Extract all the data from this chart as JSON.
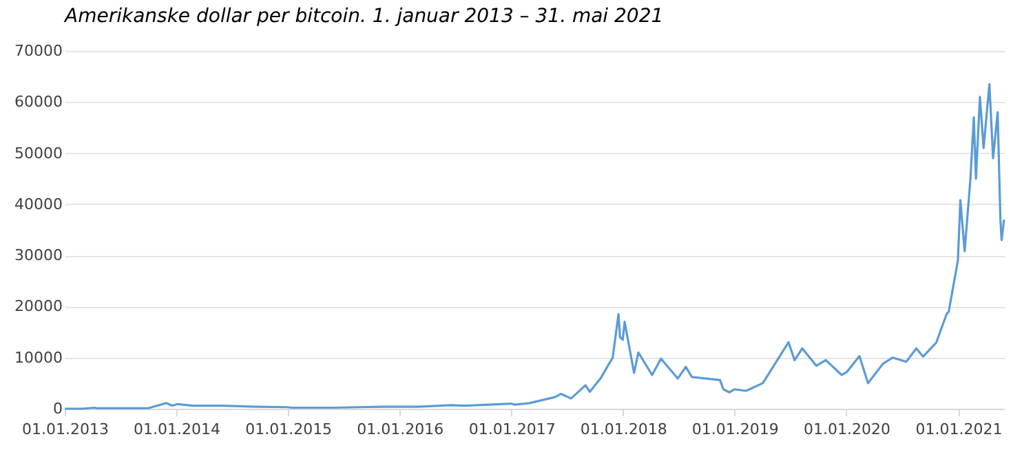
{
  "chart_data": {
    "type": "line",
    "title": "Amerikanske dollar per bitcoin. 1. januar 2013 – 31. mai 2021",
    "x": [
      "2013-01-01",
      "2013-03-01",
      "2013-04-09",
      "2013-04-16",
      "2013-07-05",
      "2013-10-01",
      "2013-11-30",
      "2013-12-18",
      "2014-01-05",
      "2014-02-25",
      "2014-06-03",
      "2014-09-20",
      "2014-12-31",
      "2015-01-14",
      "2015-06-01",
      "2015-11-04",
      "2015-12-20",
      "2016-03-01",
      "2016-06-17",
      "2016-08-02",
      "2016-12-31",
      "2017-01-11",
      "2017-03-01",
      "2017-05-25",
      "2017-06-12",
      "2017-07-15",
      "2017-08-31",
      "2017-09-14",
      "2017-10-20",
      "2017-11-28",
      "2017-12-17",
      "2017-12-22",
      "2017-12-31",
      "2018-01-06",
      "2018-02-06",
      "2018-02-20",
      "2018-04-06",
      "2018-05-05",
      "2018-06-29",
      "2018-07-25",
      "2018-08-14",
      "2018-11-14",
      "2018-11-25",
      "2018-12-15",
      "2018-12-31",
      "2019-02-07",
      "2019-04-03",
      "2019-06-26",
      "2019-07-16",
      "2019-08-10",
      "2019-09-25",
      "2019-10-26",
      "2019-12-17",
      "2020-01-03",
      "2020-02-13",
      "2020-03-12",
      "2020-04-30",
      "2020-06-01",
      "2020-07-15",
      "2020-08-17",
      "2020-09-08",
      "2020-10-21",
      "2020-11-24",
      "2020-12-01",
      "2020-12-31",
      "2021-01-08",
      "2021-01-22",
      "2021-02-10",
      "2021-02-21",
      "2021-02-28",
      "2021-03-13",
      "2021-03-25",
      "2021-04-13",
      "2021-04-25",
      "2021-05-10",
      "2021-05-19",
      "2021-05-23",
      "2021-05-31"
    ],
    "series": [
      {
        "color": "#5b9bd5",
        "values": [
          0,
          0,
          200,
          100,
          100,
          100,
          1100,
          600,
          900,
          600,
          600,
          400,
          300,
          200,
          200,
          400,
          400,
          400,
          700,
          600,
          1000,
          800,
          1100,
          2300,
          2900,
          2000,
          4600,
          3300,
          6000,
          10000,
          18500,
          14000,
          13500,
          17000,
          7000,
          11000,
          6600,
          9800,
          5900,
          8200,
          6200,
          5600,
          3800,
          3200,
          3800,
          3500,
          5000,
          13000,
          9500,
          11800,
          8400,
          9500,
          6600,
          7200,
          10300,
          5000,
          8800,
          10000,
          9200,
          11800,
          10200,
          12900,
          18500,
          19000,
          29000,
          40800,
          30800,
          45000,
          57000,
          45000,
          61000,
          51000,
          63500,
          49000,
          58000,
          37000,
          33000,
          37000
        ]
      }
    ],
    "ylim": [
      0,
      70000
    ],
    "yticks": [
      0,
      10000,
      20000,
      30000,
      40000,
      50000,
      60000,
      70000
    ],
    "xlim": [
      "2013-01-01",
      "2021-05-31"
    ],
    "xticks": [
      {
        "value": "2013-01-01",
        "label": "01.01.2013"
      },
      {
        "value": "2014-01-01",
        "label": "01.01.2014"
      },
      {
        "value": "2015-01-01",
        "label": "01.01.2015"
      },
      {
        "value": "2016-01-01",
        "label": "01.01.2016"
      },
      {
        "value": "2017-01-01",
        "label": "01.01.2017"
      },
      {
        "value": "2018-01-01",
        "label": "01.01.2018"
      },
      {
        "value": "2019-01-01",
        "label": "01.01.2019"
      },
      {
        "value": "2020-01-01",
        "label": "01.01.2020"
      },
      {
        "value": "2021-01-01",
        "label": "01.01.2021"
      }
    ],
    "grid": "y"
  }
}
